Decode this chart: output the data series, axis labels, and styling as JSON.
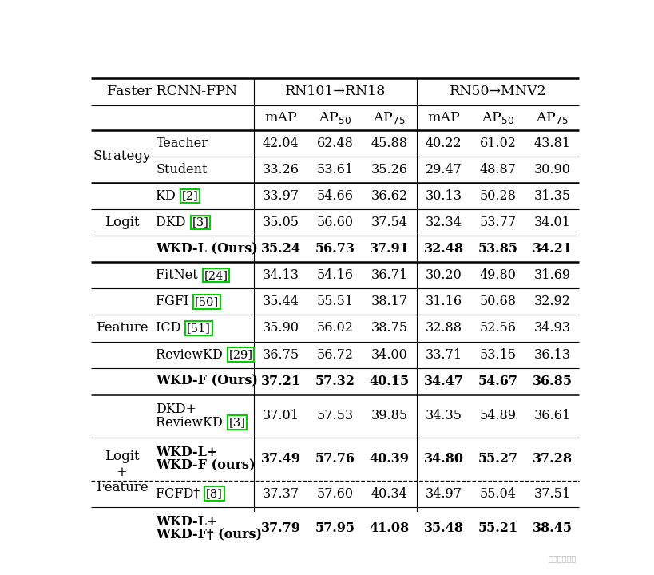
{
  "title": "Faster RCNN-FPN",
  "col_group1": "RN101→RN18",
  "col_group2": "RN50→MNV2",
  "background": "#ffffff",
  "rows": [
    {
      "group": "Strategy",
      "method": "Teacher",
      "cite": "",
      "multiline": false,
      "vals": [
        "42.04",
        "62.48",
        "45.88",
        "40.22",
        "61.02",
        "43.81"
      ],
      "bold": false
    },
    {
      "group": "",
      "method": "Student",
      "cite": "",
      "multiline": false,
      "vals": [
        "33.26",
        "53.61",
        "35.26",
        "29.47",
        "48.87",
        "30.90"
      ],
      "bold": false
    },
    {
      "group": "Logit",
      "method": "KD ",
      "cite": "2",
      "multiline": false,
      "vals": [
        "33.97",
        "54.66",
        "36.62",
        "30.13",
        "50.28",
        "31.35"
      ],
      "bold": false
    },
    {
      "group": "",
      "method": "DKD ",
      "cite": "3",
      "multiline": false,
      "vals": [
        "35.05",
        "56.60",
        "37.54",
        "32.34",
        "53.77",
        "34.01"
      ],
      "bold": false
    },
    {
      "group": "",
      "method": "WKD-L (Ours)",
      "cite": "",
      "multiline": false,
      "vals": [
        "35.24",
        "56.73",
        "37.91",
        "32.48",
        "53.85",
        "34.21"
      ],
      "bold": true
    },
    {
      "group": "Feature",
      "method": "FitNet ",
      "cite": "24",
      "multiline": false,
      "vals": [
        "34.13",
        "54.16",
        "36.71",
        "30.20",
        "49.80",
        "31.69"
      ],
      "bold": false
    },
    {
      "group": "",
      "method": "FGFI ",
      "cite": "50",
      "multiline": false,
      "vals": [
        "35.44",
        "55.51",
        "38.17",
        "31.16",
        "50.68",
        "32.92"
      ],
      "bold": false
    },
    {
      "group": "",
      "method": "ICD ",
      "cite": "51",
      "multiline": false,
      "vals": [
        "35.90",
        "56.02",
        "38.75",
        "32.88",
        "52.56",
        "34.93"
      ],
      "bold": false
    },
    {
      "group": "",
      "method": "ReviewKD ",
      "cite": "29",
      "multiline": false,
      "vals": [
        "36.75",
        "56.72",
        "34.00",
        "33.71",
        "53.15",
        "36.13"
      ],
      "bold": false
    },
    {
      "group": "",
      "method": "WKD-F (Ours)",
      "cite": "",
      "multiline": false,
      "vals": [
        "37.21",
        "57.32",
        "40.15",
        "34.47",
        "54.67",
        "36.85"
      ],
      "bold": true
    },
    {
      "group": "Logit\n+\nFeature",
      "method": "DKD+\nReviewKD ",
      "cite": "3",
      "multiline": true,
      "vals": [
        "37.01",
        "57.53",
        "39.85",
        "34.35",
        "54.89",
        "36.61"
      ],
      "bold": false
    },
    {
      "group": "",
      "method": "WKD-L+\nWKD-F (ours)",
      "cite": "",
      "multiline": true,
      "vals": [
        "37.49",
        "57.76",
        "40.39",
        "34.80",
        "55.27",
        "37.28"
      ],
      "bold": true
    },
    {
      "group": "",
      "method": "FCFD† ",
      "cite": "8",
      "multiline": false,
      "vals": [
        "37.37",
        "57.60",
        "40.34",
        "34.97",
        "55.04",
        "37.51"
      ],
      "bold": false
    },
    {
      "group": "",
      "method": "WKD-L+\nWKD-F† (ours)",
      "cite": "",
      "multiline": true,
      "vals": [
        "37.79",
        "57.95",
        "41.08",
        "35.48",
        "55.21",
        "38.45"
      ],
      "bold": true
    }
  ],
  "group_row_ranges": {
    "Strategy": [
      0,
      1
    ],
    "Logit": [
      2,
      4
    ],
    "Feature": [
      5,
      9
    ],
    "Logit\n+\nFeature": [
      10,
      13
    ]
  },
  "thick_border_after_rows": [
    1,
    4,
    9
  ],
  "dashed_border_after_rows": [
    11
  ]
}
